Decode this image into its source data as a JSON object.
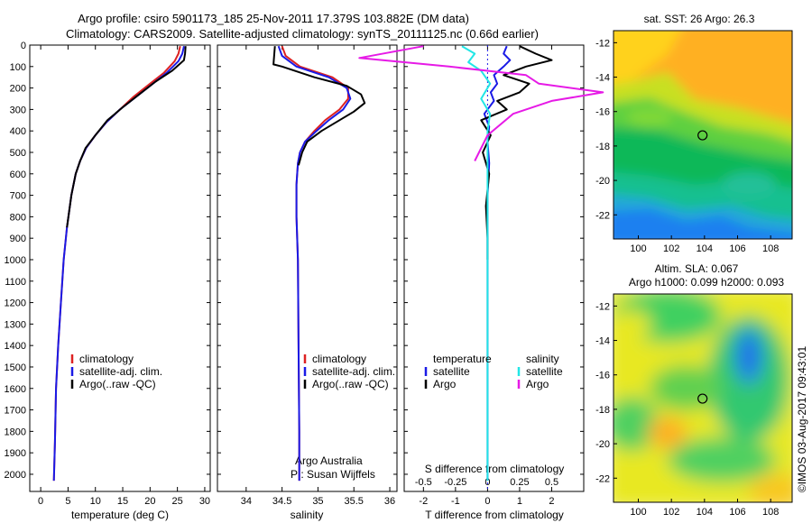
{
  "title": {
    "line1": "Argo profile: csiro 5901173_185 25-Nov-2011 17.379S 103.882E (DM data)",
    "line2": "Climatology: CARS2009. Satellite-adjusted climatology: synTS_20111125.nc (0.66d earlier)"
  },
  "colors": {
    "climatology": "#dd2222",
    "satellite": "#1a1ae6",
    "argo": "#000000",
    "salinity_diff": "#22e6e6",
    "argo_salinity_diff": "#e61ae6"
  },
  "chart_data": [
    {
      "type": "line",
      "name": "temperature-profile",
      "xlabel": "temperature (deg C)",
      "ylabel": "",
      "xlim": [
        -2,
        31
      ],
      "ylim": [
        2080,
        0
      ],
      "x_ticks": [
        0,
        5,
        10,
        15,
        20,
        25,
        30
      ],
      "x_tick_labels": [
        "0",
        "5",
        "10",
        "15",
        "20",
        "25",
        "30"
      ],
      "y_ticks": [
        0,
        100,
        200,
        300,
        400,
        500,
        600,
        700,
        800,
        900,
        1000,
        1100,
        1200,
        1300,
        1400,
        1500,
        1600,
        1700,
        1800,
        1900,
        2000
      ],
      "y_tick_labels": [
        "0",
        "100",
        "200",
        "300",
        "400",
        "500",
        "600",
        "700",
        "800",
        "900",
        "1000",
        "1100",
        "1200",
        "1300",
        "1400",
        "1500",
        "1600",
        "1700",
        "1800",
        "1900",
        "2000"
      ],
      "legend": [
        "climatology",
        "satellite-adj. clim.",
        "Argo(..raw -QC)"
      ],
      "series": [
        {
          "name": "climatology",
          "color_key": "climatology",
          "x": [
            25.5,
            25.2,
            24.5,
            22.5,
            20,
            17,
            14.5,
            12,
            10,
            8.3,
            7.2,
            6.4,
            5.6,
            4.8,
            4.2,
            3.7,
            3.2,
            2.8,
            2.6,
            2.4
          ],
          "y": [
            5,
            40,
            75,
            130,
            180,
            240,
            300,
            360,
            420,
            480,
            540,
            600,
            700,
            850,
            1000,
            1200,
            1400,
            1600,
            1850,
            2030
          ]
        },
        {
          "name": "satellite-adj. clim.",
          "color_key": "satellite",
          "x": [
            26.2,
            25.9,
            25.2,
            23,
            20.5,
            17.5,
            14.5,
            12,
            10,
            8.3,
            7.2,
            6.4,
            5.6,
            4.8,
            4.2,
            3.7,
            3.2,
            2.8,
            2.6,
            2.4
          ],
          "y": [
            5,
            40,
            75,
            130,
            180,
            240,
            300,
            360,
            420,
            480,
            540,
            600,
            700,
            850,
            1000,
            1200,
            1400,
            1600,
            1850,
            2030
          ]
        },
        {
          "name": "Argo(..raw -QC)",
          "color_key": "argo",
          "x": [
            26.5,
            26.4,
            26.2,
            24,
            21,
            18,
            15,
            12.2,
            10,
            8.2,
            7.2,
            6.4,
            5.6,
            4.8
          ],
          "y": [
            5,
            40,
            70,
            120,
            170,
            230,
            290,
            350,
            420,
            480,
            540,
            600,
            700,
            850
          ]
        }
      ]
    },
    {
      "type": "line",
      "name": "salinity-profile",
      "xlabel": "salinity",
      "xlim": [
        33.6,
        36.1
      ],
      "ylim": [
        2080,
        0
      ],
      "x_ticks": [
        34,
        34.5,
        35,
        35.5,
        36
      ],
      "x_tick_labels": [
        "34",
        "34.5",
        "35",
        "35.5",
        "36"
      ],
      "legend": [
        "climatology",
        "satellite-adj. clim.",
        "Argo(..raw -QC)"
      ],
      "annotation": [
        "Argo Australia",
        "PI: Susan Wijffels"
      ],
      "series": [
        {
          "name": "climatology",
          "color_key": "climatology",
          "x": [
            34.5,
            34.55,
            34.75,
            35.2,
            35.42,
            35.42,
            35.3,
            35.1,
            34.95,
            34.82,
            34.75,
            34.72,
            34.7,
            34.7,
            34.72,
            34.73,
            34.74,
            34.74
          ],
          "y": [
            5,
            50,
            100,
            150,
            200,
            250,
            300,
            350,
            400,
            450,
            500,
            550,
            650,
            800,
            1000,
            1400,
            1800,
            2030
          ]
        },
        {
          "name": "satellite-adj. clim.",
          "color_key": "satellite",
          "x": [
            34.45,
            34.5,
            34.7,
            35.15,
            35.4,
            35.45,
            35.35,
            35.15,
            34.98,
            34.82,
            34.75,
            34.72,
            34.7,
            34.7,
            34.72,
            34.73,
            34.74,
            34.74
          ],
          "y": [
            5,
            50,
            100,
            150,
            200,
            250,
            300,
            350,
            400,
            450,
            500,
            550,
            650,
            800,
            1000,
            1400,
            1800,
            2030
          ]
        },
        {
          "name": "Argo(..raw -QC)",
          "color_key": "argo",
          "x": [
            34.4,
            34.38,
            34.5,
            34.95,
            35.4,
            35.6,
            35.65,
            35.5,
            35.3,
            35.05,
            34.85,
            34.78,
            34.73
          ],
          "y": [
            5,
            90,
            100,
            150,
            190,
            230,
            270,
            310,
            350,
            400,
            450,
            500,
            560
          ]
        }
      ]
    },
    {
      "type": "line",
      "name": "difference-profile",
      "xlabel": "T difference from climatology",
      "top_label": "S difference from climatology",
      "xlim": [
        -2.6,
        3
      ],
      "ylim": [
        2080,
        0
      ],
      "x_ticks": [
        -2,
        -1,
        0,
        1,
        2
      ],
      "x_tick_labels": [
        "-2",
        "-1",
        "0",
        "1",
        "2"
      ],
      "top_ticks": [
        -0.5,
        -0.25,
        0,
        0.25,
        0.5
      ],
      "top_tick_labels": [
        "-0.5",
        "-0.25",
        "0",
        "0.25",
        "0.5"
      ],
      "legend_headers": [
        "temperature",
        "salinity"
      ],
      "legend": [
        "satellite",
        "Argo",
        "satellite",
        "Argo"
      ],
      "series": [
        {
          "name": "T satellite",
          "color_key": "satellite",
          "x": [
            0.6,
            0.5,
            0.7,
            0.5,
            0.2,
            0.3,
            0.1,
            0.2,
            -0.1,
            0.05,
            0,
            0.05,
            0,
            0,
            0,
            0
          ],
          "y": [
            5,
            40,
            70,
            100,
            140,
            180,
            220,
            260,
            320,
            380,
            450,
            550,
            700,
            900,
            1200,
            2030
          ]
        },
        {
          "name": "T Argo",
          "color_key": "argo",
          "x": [
            1,
            1.5,
            2,
            1.2,
            0.5,
            1.3,
            1.0,
            0.3,
            0.6,
            -0.2,
            0.1,
            -0.15,
            0.05,
            -0.05,
            0,
            0
          ],
          "y": [
            5,
            40,
            70,
            100,
            140,
            180,
            220,
            260,
            300,
            350,
            420,
            500,
            600,
            750,
            900,
            1000
          ]
        },
        {
          "name": "S satellite",
          "color_key": "salinity_diff",
          "x": [
            -0.2,
            -0.1,
            -0.15,
            -0.05,
            0.02,
            -0.05,
            0.02,
            0,
            0,
            0
          ],
          "y": [
            5,
            40,
            80,
            120,
            180,
            250,
            320,
            400,
            600,
            2030
          ]
        },
        {
          "name": "S Argo",
          "color_key": "argo_salinity_diff",
          "x": [
            -0.5,
            -1.0,
            -0.3,
            0.3,
            0.4,
            0.9,
            0.5,
            0.2,
            0.0,
            -0.1
          ],
          "y": [
            5,
            60,
            100,
            140,
            180,
            220,
            260,
            320,
            420,
            540
          ]
        }
      ]
    },
    {
      "type": "heatmap",
      "name": "sst-map",
      "title": "sat. SST: 26 Argo: 26.3",
      "xlim": [
        98.5,
        109.3
      ],
      "ylim": [
        -23.4,
        -11.3
      ],
      "x_ticks": [
        100,
        102,
        104,
        106,
        108
      ],
      "y_ticks": [
        -12,
        -14,
        -16,
        -18,
        -20,
        -22
      ],
      "x_tick_labels": [
        "100",
        "102",
        "104",
        "106",
        "108"
      ],
      "y_tick_labels": [
        "-12",
        "-14",
        "-16",
        "-18",
        "-20",
        "-22"
      ],
      "marker": [
        103.882,
        -17.379
      ]
    },
    {
      "type": "heatmap",
      "name": "sla-map",
      "title_lines": [
        "Altim. SLA: 0.067",
        "Argo h1000: 0.099 h2000: 0.093"
      ],
      "xlim": [
        98.5,
        109.3
      ],
      "ylim": [
        -23.4,
        -11.3
      ],
      "x_ticks": [
        100,
        102,
        104,
        106,
        108
      ],
      "y_ticks": [
        -12,
        -14,
        -16,
        -18,
        -20,
        -22
      ],
      "x_tick_labels": [
        "100",
        "102",
        "104",
        "106",
        "108"
      ],
      "y_tick_labels": [
        "-12",
        "-14",
        "-16",
        "-18",
        "-20",
        "-22"
      ],
      "marker": [
        103.882,
        -17.379
      ]
    }
  ],
  "credit": "©IMOS 03-Aug-2017 09:43:01"
}
